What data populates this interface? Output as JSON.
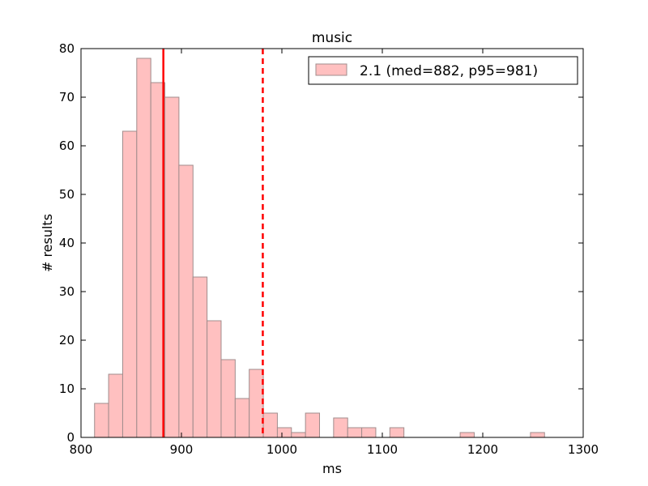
{
  "chart_data": {
    "type": "bar",
    "title": "music",
    "xlabel": "ms",
    "ylabel": "# results",
    "xlim": [
      800,
      1300
    ],
    "ylim": [
      0,
      80
    ],
    "xticks": [
      800,
      900,
      1000,
      1100,
      1200,
      1300
    ],
    "yticks": [
      0,
      10,
      20,
      30,
      40,
      50,
      60,
      70,
      80
    ],
    "grid": false,
    "legend_position": "top-right",
    "series": [
      {
        "name": "2.1 (med=882, p95=981)",
        "color": "#ffc0c0",
        "edge_color": "#a08c8c",
        "bins": [
          {
            "x0": 813.5,
            "x1": 827.5,
            "count": 7
          },
          {
            "x0": 827.5,
            "x1": 841.5,
            "count": 13
          },
          {
            "x0": 841.5,
            "x1": 855.5,
            "count": 63
          },
          {
            "x0": 855.5,
            "x1": 869.5,
            "count": 78
          },
          {
            "x0": 869.5,
            "x1": 883.5,
            "count": 73
          },
          {
            "x0": 883.5,
            "x1": 897.5,
            "count": 70
          },
          {
            "x0": 897.5,
            "x1": 911.5,
            "count": 56
          },
          {
            "x0": 911.5,
            "x1": 925.5,
            "count": 33
          },
          {
            "x0": 925.5,
            "x1": 939.5,
            "count": 24
          },
          {
            "x0": 939.5,
            "x1": 953.5,
            "count": 16
          },
          {
            "x0": 953.5,
            "x1": 967.5,
            "count": 8
          },
          {
            "x0": 967.5,
            "x1": 981.5,
            "count": 14
          },
          {
            "x0": 981.5,
            "x1": 995.5,
            "count": 5
          },
          {
            "x0": 995.5,
            "x1": 1009.5,
            "count": 2
          },
          {
            "x0": 1009.5,
            "x1": 1023.5,
            "count": 1
          },
          {
            "x0": 1023.5,
            "x1": 1037.5,
            "count": 5
          },
          {
            "x0": 1037.5,
            "x1": 1051.5,
            "count": 0
          },
          {
            "x0": 1051.5,
            "x1": 1065.5,
            "count": 4
          },
          {
            "x0": 1065.5,
            "x1": 1079.5,
            "count": 2
          },
          {
            "x0": 1079.5,
            "x1": 1093.5,
            "count": 2
          },
          {
            "x0": 1093.5,
            "x1": 1107.5,
            "count": 0
          },
          {
            "x0": 1107.5,
            "x1": 1121.5,
            "count": 2
          },
          {
            "x0": 1177.5,
            "x1": 1191.5,
            "count": 1
          },
          {
            "x0": 1247.5,
            "x1": 1261.5,
            "count": 1
          }
        ]
      }
    ],
    "reference_lines": [
      {
        "name": "median",
        "x": 882,
        "style": "solid",
        "color": "#ff0000"
      },
      {
        "name": "p95",
        "x": 981,
        "style": "dashed",
        "color": "#ff0000"
      }
    ]
  }
}
